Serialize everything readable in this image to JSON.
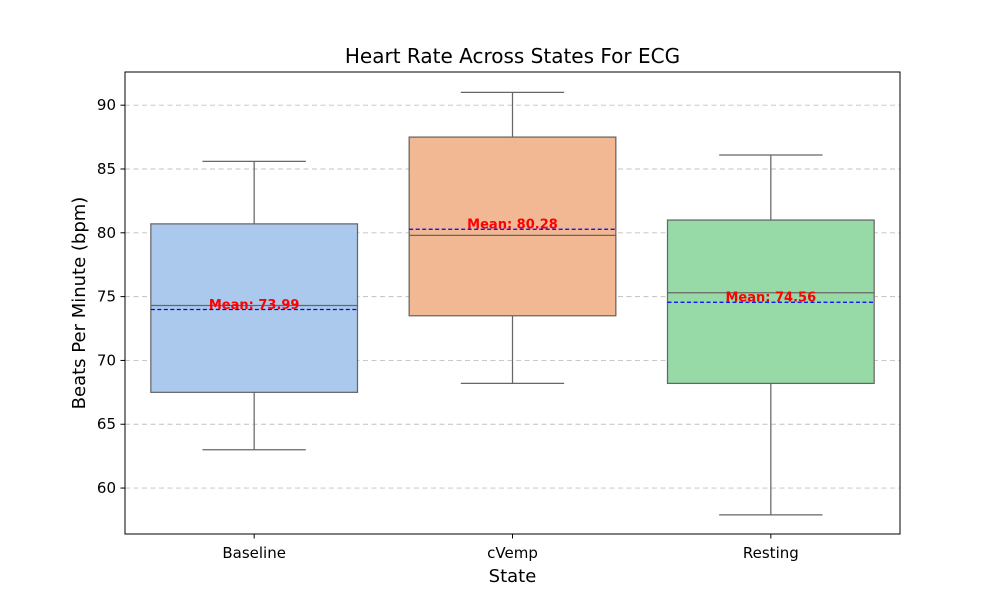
{
  "chart_data": {
    "type": "box",
    "title": "Heart Rate Across States For ECG",
    "xlabel": "State",
    "ylabel": "Beats Per Minute (bpm)",
    "ylim": [
      56.4,
      92.6
    ],
    "yticks": [
      60,
      65,
      70,
      75,
      80,
      85,
      90
    ],
    "grid": "horizontal dashed",
    "categories": [
      "Baseline",
      "cVemp",
      "Resting"
    ],
    "boxes": [
      {
        "category": "Baseline",
        "whisker_low": 63.0,
        "q1": 67.5,
        "median": 74.3,
        "q3": 80.7,
        "whisker_high": 85.6,
        "mean": 73.99,
        "mean_label": "Mean: 73.99",
        "color": "#abc9ed"
      },
      {
        "category": "cVemp",
        "whisker_low": 68.2,
        "q1": 73.5,
        "median": 79.8,
        "q3": 87.5,
        "whisker_high": 91.0,
        "mean": 80.28,
        "mean_label": "Mean: 80.28",
        "color": "#f1b893"
      },
      {
        "category": "Resting",
        "whisker_low": 57.9,
        "q1": 68.2,
        "median": 75.3,
        "q3": 81.0,
        "whisker_high": 86.1,
        "mean": 74.56,
        "mean_label": "Mean: 74.56",
        "color": "#97d9a7"
      }
    ],
    "mean_line_color": "#0000ff",
    "mean_label_color": "#ff0000"
  }
}
